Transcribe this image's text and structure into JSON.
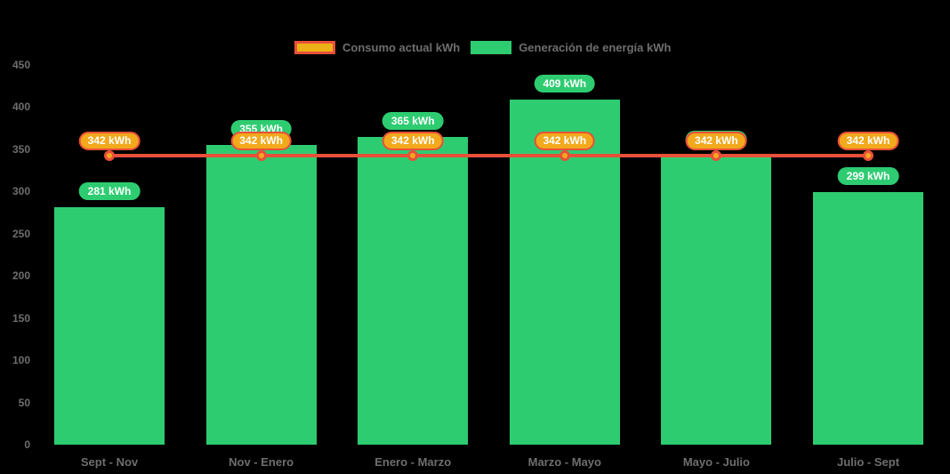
{
  "chart_data": {
    "type": "bar",
    "title": "",
    "xlabel": "",
    "ylabel": "",
    "unit": "kWh",
    "categories": [
      "Sept - Nov",
      "Nov - Enero",
      "Enero - Marzo",
      "Marzo - Mayo",
      "Mayo - Julio",
      "Julio - Sept"
    ],
    "series": [
      {
        "name": "Consumo actual kWh",
        "type": "line",
        "color": "#e8503a",
        "marker_color": "#f2a91c",
        "values": [
          342,
          342,
          342,
          342,
          342,
          342
        ],
        "point_labels": [
          "342 kWh",
          "342 kWh",
          "342 kWh",
          "342 kWh",
          "342 kWh",
          "342 kWh"
        ]
      },
      {
        "name": "Generación de energía kWh",
        "type": "bar",
        "color": "#2ecc71",
        "values": [
          281,
          355,
          365,
          409,
          342,
          299
        ],
        "point_labels": [
          "281 kWh",
          "355 kWh",
          "365 kWh",
          "409 kWh",
          "342 kWh",
          "299 kWh"
        ]
      }
    ],
    "ylim": [
      0,
      450
    ],
    "yticks": [
      0,
      50,
      100,
      150,
      200,
      250,
      300,
      350,
      400,
      450
    ],
    "grid": false,
    "legend_position": "top",
    "background_color": "#000000",
    "text_color": "#6e6e6e"
  }
}
